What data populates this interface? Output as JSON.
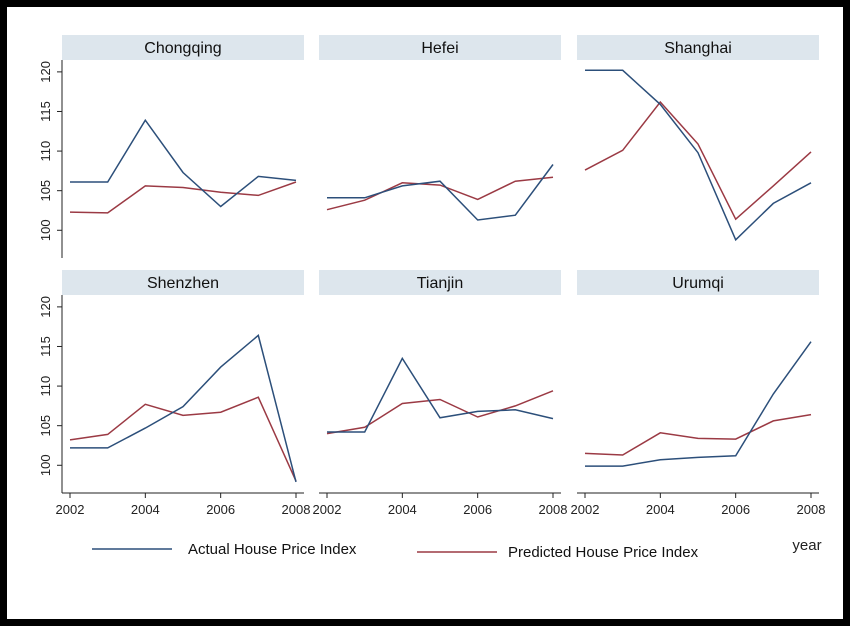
{
  "chart_data": {
    "type": "line",
    "xlabel": "year",
    "x_ticks": [
      2002,
      2004,
      2006,
      2008
    ],
    "y_ticks": [
      100,
      105,
      110,
      115,
      120
    ],
    "ylim": [
      96.5,
      121.5
    ],
    "xlim": [
      2002,
      2008
    ],
    "grid": false,
    "legend_placement": "bottom",
    "colors": {
      "actual": "#2c4f7a",
      "predicted": "#9b3a44",
      "strip": "#dde6ed"
    },
    "legend": [
      {
        "key": "actual",
        "label": "Actual House Price Index"
      },
      {
        "key": "predicted",
        "label": "Predicted House Price Index"
      }
    ],
    "x": [
      2002,
      2003,
      2004,
      2005,
      2006,
      2007,
      2008
    ],
    "panels": [
      {
        "title": "Chongqing",
        "actual": [
          106.1,
          106.1,
          113.9,
          107.3,
          103.0,
          106.8,
          106.3
        ],
        "predicted": [
          102.3,
          102.2,
          105.6,
          105.4,
          104.8,
          104.4,
          106.1
        ]
      },
      {
        "title": "Hefei",
        "actual": [
          104.1,
          104.1,
          105.6,
          106.2,
          101.3,
          101.9,
          108.3
        ],
        "predicted": [
          102.6,
          103.8,
          106.0,
          105.7,
          103.9,
          106.2,
          106.7
        ]
      },
      {
        "title": "Shanghai",
        "actual": [
          120.2,
          120.2,
          115.9,
          109.8,
          98.8,
          103.4,
          106.0
        ],
        "predicted": [
          107.6,
          110.1,
          116.2,
          110.9,
          101.4,
          105.6,
          109.9
        ]
      },
      {
        "title": "Shenzhen",
        "actual": [
          102.2,
          102.2,
          104.7,
          107.4,
          112.4,
          116.4,
          97.9
        ],
        "predicted": [
          103.2,
          103.9,
          107.7,
          106.3,
          106.7,
          108.6,
          98.0
        ]
      },
      {
        "title": "Tianjin",
        "actual": [
          104.2,
          104.2,
          113.5,
          106.0,
          106.8,
          107.0,
          105.9
        ],
        "predicted": [
          104.0,
          104.8,
          107.8,
          108.3,
          106.1,
          107.5,
          109.4
        ]
      },
      {
        "title": "Urumqi",
        "actual": [
          99.9,
          99.9,
          100.7,
          101.0,
          101.2,
          109.0,
          115.6
        ],
        "predicted": [
          101.5,
          101.3,
          104.1,
          103.4,
          103.3,
          105.6,
          106.4
        ]
      }
    ]
  }
}
